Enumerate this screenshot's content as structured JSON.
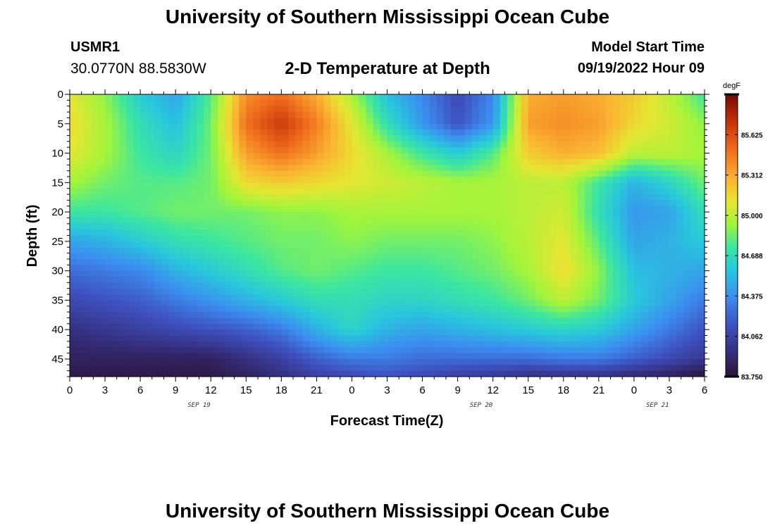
{
  "header": {
    "title": "University of Southern Mississippi Ocean Cube",
    "station_id": "USMR1",
    "station_coords": "30.0770N  88.5830W",
    "plot_title": "2-D Temperature at Depth",
    "model_start_label": "Model Start Time",
    "model_start_value": "09/19/2022 Hour 09"
  },
  "footer": {
    "title": "University of Southern Mississippi Ocean Cube"
  },
  "chart_data": {
    "type": "heatmap",
    "title": "2-D Temperature at Depth",
    "xlabel": "Forecast Time(Z)",
    "ylabel": "Depth (ft)",
    "x_tick_labels": [
      "0",
      "3",
      "6",
      "9",
      "12",
      "15",
      "18",
      "21",
      "0",
      "3",
      "6",
      "9",
      "12",
      "15",
      "18",
      "21",
      "0",
      "3",
      "6"
    ],
    "date_labels": [
      {
        "label": "SEP 19",
        "at_hour": 11
      },
      {
        "label": "SEP 20",
        "at_hour": 35
      },
      {
        "label": "SEP 21",
        "at_hour": 50
      }
    ],
    "x_range_hours": [
      0,
      54
    ],
    "y_ticks": [
      0,
      5,
      10,
      15,
      20,
      25,
      30,
      35,
      40,
      45
    ],
    "y_range": [
      0,
      48
    ],
    "y_inverted": true,
    "colorbar": {
      "unit": "degF",
      "min": 83.75,
      "max": 85.9375,
      "tick_labels": [
        "85.625",
        "85.312",
        "85.000",
        "84.688",
        "84.375",
        "84.062",
        "83.750"
      ],
      "tick_values": [
        85.625,
        85.3125,
        85.0,
        84.6875,
        84.375,
        84.0625,
        83.75
      ]
    },
    "times_hours": [
      0,
      3,
      6,
      9,
      12,
      15,
      18,
      21,
      24,
      27,
      30,
      33,
      36,
      39,
      42,
      45,
      48,
      51,
      54
    ],
    "depths_ft": [
      0,
      5,
      10,
      15,
      20,
      25,
      30,
      35,
      40,
      45,
      48
    ],
    "temperature_degF": [
      [
        85.1,
        84.9,
        84.6,
        84.45,
        84.8,
        85.4,
        85.5,
        85.3,
        84.95,
        84.55,
        84.35,
        84.1,
        84.35,
        85.3,
        85.35,
        85.3,
        85.2,
        85.0,
        84.75
      ],
      [
        85.15,
        84.95,
        84.7,
        84.55,
        84.85,
        85.5,
        85.7,
        85.45,
        85.1,
        84.7,
        84.4,
        84.15,
        84.4,
        85.35,
        85.4,
        85.35,
        85.15,
        85.05,
        84.9
      ],
      [
        85.1,
        84.95,
        84.75,
        84.65,
        84.85,
        85.35,
        85.5,
        85.35,
        85.15,
        84.95,
        84.75,
        84.6,
        84.8,
        85.2,
        85.3,
        85.25,
        85.0,
        85.0,
        84.95
      ],
      [
        84.95,
        84.85,
        84.8,
        84.8,
        84.85,
        85.15,
        85.2,
        85.15,
        85.1,
        85.05,
        85.0,
        84.95,
        84.95,
        85.0,
        85.0,
        84.75,
        84.5,
        84.65,
        84.85
      ],
      [
        84.75,
        84.75,
        84.8,
        84.85,
        84.85,
        84.85,
        84.9,
        84.9,
        84.95,
        84.95,
        84.95,
        84.95,
        84.95,
        85.0,
        85.05,
        84.7,
        84.4,
        84.45,
        84.7
      ],
      [
        84.45,
        84.5,
        84.6,
        84.7,
        84.75,
        84.8,
        84.85,
        84.85,
        84.9,
        84.85,
        84.85,
        84.85,
        84.9,
        85.0,
        85.1,
        84.8,
        84.45,
        84.5,
        84.6
      ],
      [
        84.25,
        84.3,
        84.35,
        84.5,
        84.6,
        84.7,
        84.8,
        84.85,
        84.8,
        84.75,
        84.75,
        84.8,
        84.85,
        84.95,
        85.15,
        84.9,
        84.55,
        84.5,
        84.45
      ],
      [
        84.1,
        84.15,
        84.2,
        84.3,
        84.4,
        84.5,
        84.6,
        84.7,
        84.7,
        84.65,
        84.65,
        84.7,
        84.75,
        84.85,
        85.0,
        84.85,
        84.6,
        84.45,
        84.3
      ],
      [
        83.95,
        84.0,
        84.05,
        84.1,
        84.15,
        84.2,
        84.3,
        84.5,
        84.65,
        84.5,
        84.45,
        84.5,
        84.55,
        84.6,
        84.65,
        84.6,
        84.45,
        84.3,
        84.15
      ],
      [
        83.85,
        83.85,
        83.85,
        83.85,
        83.85,
        83.95,
        84.05,
        84.2,
        84.3,
        84.3,
        84.25,
        84.25,
        84.25,
        84.25,
        84.3,
        84.3,
        84.2,
        84.1,
        84.0
      ],
      [
        83.8,
        83.8,
        83.8,
        83.8,
        83.8,
        83.85,
        83.95,
        84.05,
        84.1,
        84.15,
        84.1,
        84.05,
        84.0,
        83.95,
        83.95,
        83.95,
        83.9,
        83.85,
        83.75
      ]
    ]
  }
}
